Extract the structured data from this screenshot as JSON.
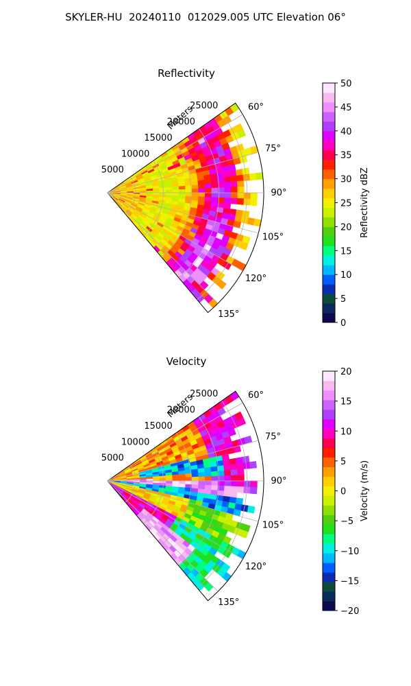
{
  "figure": {
    "title": "SKYLER-HU  20240110  012029.005 UTC Elevation 06°"
  },
  "chart_data": [
    {
      "type": "heatmap",
      "subtype": "polar-sector-radar",
      "title": "Reflectivity",
      "radial_label": "Meters",
      "range_ticks": [
        5000,
        10000,
        15000,
        20000,
        25000
      ],
      "range_limit": [
        0,
        28000
      ],
      "azimuth_ticks": [
        "60°",
        "75°",
        "90°",
        "105°",
        "120°",
        "135°"
      ],
      "azimuth_range_deg": [
        55,
        140
      ],
      "grid": true,
      "colorbar": {
        "label": "Reflectivity dBZ",
        "min": 0,
        "max": 50,
        "ticks": [
          "0",
          "5",
          "10",
          "15",
          "20",
          "25",
          "30",
          "35",
          "40",
          "45",
          "50"
        ],
        "colormap": [
          "#0d0b4f",
          "#0a2a5a",
          "#0e4a3a",
          "#0b2bb0",
          "#0060ff",
          "#00b8ff",
          "#00f0e0",
          "#00ff80",
          "#20e020",
          "#50d010",
          "#90e000",
          "#c8f000",
          "#f0f000",
          "#ffd000",
          "#ffa000",
          "#ff6000",
          "#ff2000",
          "#ff0050",
          "#ff00c0",
          "#e000ff",
          "#b040ff",
          "#d060ff",
          "#ee90ff",
          "#f8b8f0",
          "#ffe6ff"
        ]
      },
      "colors": {
        "background": "#ffffff",
        "grid": "#b0b0b0"
      }
    },
    {
      "type": "heatmap",
      "subtype": "polar-sector-radar",
      "title": "Velocity",
      "radial_label": "Meters",
      "range_ticks": [
        5000,
        10000,
        15000,
        20000,
        25000
      ],
      "range_limit": [
        0,
        28000
      ],
      "azimuth_ticks": [
        "60°",
        "75°",
        "90°",
        "105°",
        "120°",
        "135°"
      ],
      "azimuth_range_deg": [
        55,
        140
      ],
      "grid": true,
      "colorbar": {
        "label": "Velocity (m/s)",
        "min": -20,
        "max": 20,
        "ticks": [
          "−20",
          "−15",
          "−10",
          "−5",
          "0",
          "5",
          "10",
          "15",
          "20"
        ],
        "colormap": [
          "#0d0b4f",
          "#0a2a5a",
          "#0e4a3a",
          "#0b2bb0",
          "#0060ff",
          "#00b8ff",
          "#00f0e0",
          "#00ff80",
          "#20e020",
          "#50d010",
          "#90e000",
          "#c8f000",
          "#f0f000",
          "#ffd000",
          "#ffa000",
          "#ff6000",
          "#ff2000",
          "#ff0050",
          "#ff00c0",
          "#e000ff",
          "#b040ff",
          "#d060ff",
          "#ee90ff",
          "#f8b8f0",
          "#ffe6ff"
        ]
      },
      "colors": {
        "background": "#ffffff",
        "grid": "#b0b0b0"
      }
    }
  ]
}
